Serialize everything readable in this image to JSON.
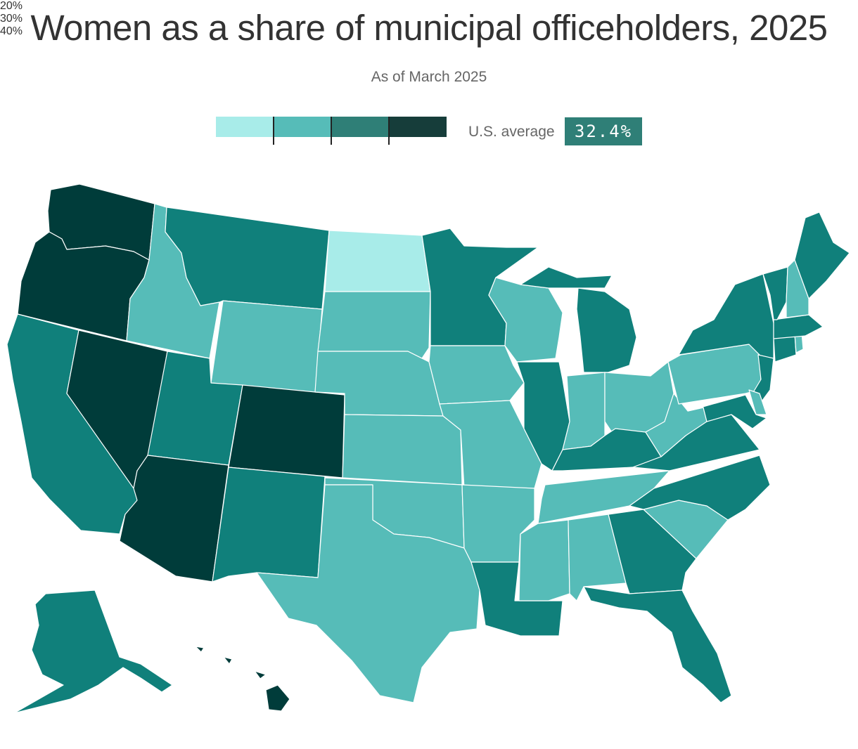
{
  "title": "Women as a share of municipal officeholders, 2025",
  "subtitle": "As of March 2025",
  "legend": {
    "bins": [
      {
        "color": "#a8ece9"
      },
      {
        "color": "#56bcb8"
      },
      {
        "color": "#2f7f77"
      },
      {
        "color": "#163d3a"
      }
    ],
    "tick_labels": [
      "20%",
      "30%",
      "40%"
    ]
  },
  "us_average": {
    "label": "U.S. average",
    "value": "32.4%"
  },
  "colors": {
    "lightest": "#a8ece9",
    "light": "#56bcb8",
    "medium": "#10807b",
    "dark": "#003c3a"
  },
  "states": [
    {
      "name": "Washington",
      "bin": "dark"
    },
    {
      "name": "Oregon",
      "bin": "dark"
    },
    {
      "name": "California",
      "bin": "medium"
    },
    {
      "name": "Nevada",
      "bin": "dark"
    },
    {
      "name": "Idaho",
      "bin": "light"
    },
    {
      "name": "Montana",
      "bin": "medium"
    },
    {
      "name": "Wyoming",
      "bin": "light"
    },
    {
      "name": "Utah",
      "bin": "medium"
    },
    {
      "name": "Arizona",
      "bin": "dark"
    },
    {
      "name": "Colorado",
      "bin": "dark"
    },
    {
      "name": "New Mexico",
      "bin": "medium"
    },
    {
      "name": "North Dakota",
      "bin": "lightest"
    },
    {
      "name": "South Dakota",
      "bin": "light"
    },
    {
      "name": "Nebraska",
      "bin": "light"
    },
    {
      "name": "Kansas",
      "bin": "light"
    },
    {
      "name": "Oklahoma",
      "bin": "light"
    },
    {
      "name": "Texas",
      "bin": "light"
    },
    {
      "name": "Minnesota",
      "bin": "medium"
    },
    {
      "name": "Iowa",
      "bin": "light"
    },
    {
      "name": "Missouri",
      "bin": "light"
    },
    {
      "name": "Arkansas",
      "bin": "light"
    },
    {
      "name": "Louisiana",
      "bin": "medium"
    },
    {
      "name": "Wisconsin",
      "bin": "light"
    },
    {
      "name": "Illinois",
      "bin": "medium"
    },
    {
      "name": "Michigan",
      "bin": "medium"
    },
    {
      "name": "Indiana",
      "bin": "light"
    },
    {
      "name": "Ohio",
      "bin": "light"
    },
    {
      "name": "Kentucky",
      "bin": "medium"
    },
    {
      "name": "Tennessee",
      "bin": "light"
    },
    {
      "name": "Mississippi",
      "bin": "light"
    },
    {
      "name": "Alabama",
      "bin": "light"
    },
    {
      "name": "Georgia",
      "bin": "medium"
    },
    {
      "name": "Florida",
      "bin": "medium"
    },
    {
      "name": "South Carolina",
      "bin": "light"
    },
    {
      "name": "North Carolina",
      "bin": "medium"
    },
    {
      "name": "Virginia",
      "bin": "medium"
    },
    {
      "name": "West Virginia",
      "bin": "light"
    },
    {
      "name": "Pennsylvania",
      "bin": "light"
    },
    {
      "name": "New York",
      "bin": "medium"
    },
    {
      "name": "New Jersey",
      "bin": "medium"
    },
    {
      "name": "Delaware",
      "bin": "light"
    },
    {
      "name": "Maryland",
      "bin": "medium"
    },
    {
      "name": "Connecticut",
      "bin": "medium"
    },
    {
      "name": "Rhode Island",
      "bin": "light"
    },
    {
      "name": "Massachusetts",
      "bin": "medium"
    },
    {
      "name": "Vermont",
      "bin": "medium"
    },
    {
      "name": "New Hampshire",
      "bin": "light"
    },
    {
      "name": "Maine",
      "bin": "medium"
    },
    {
      "name": "Alaska",
      "bin": "medium"
    },
    {
      "name": "Hawaii",
      "bin": "dark"
    }
  ]
}
